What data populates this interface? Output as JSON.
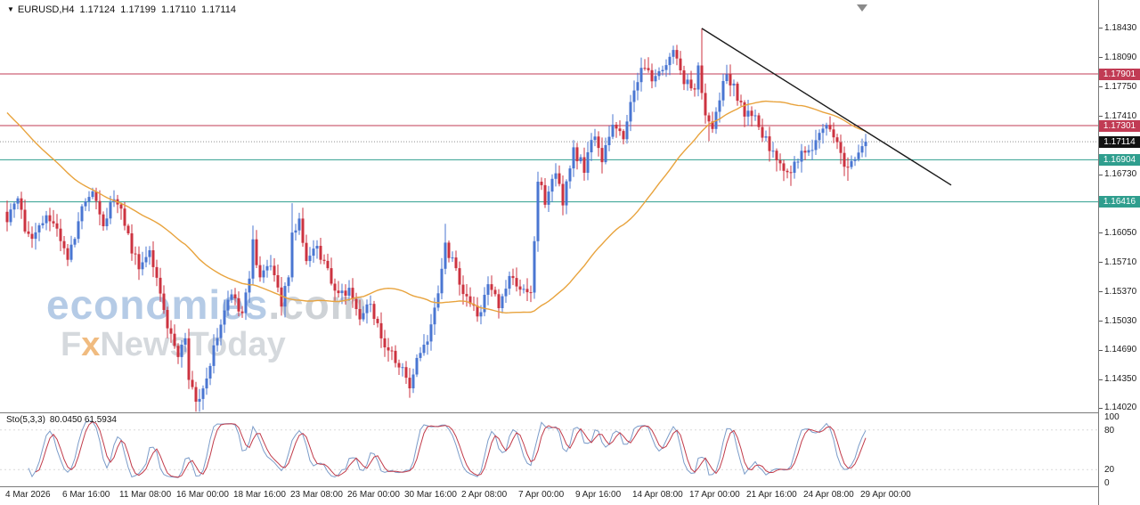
{
  "quote_header": {
    "collapse_icon": "▼",
    "symbol": "EURUSD,H4",
    "open": "1.17124",
    "high": "1.17199",
    "low": "1.17110",
    "close": "1.17114"
  },
  "watermark": {
    "brand": "economies",
    "brand_suffix": ".com",
    "tagline_pre": "F",
    "tagline_x": "x",
    "tagline_post": "NewsToday"
  },
  "colors": {
    "candle_up": "#4a76d2",
    "candle_down": "#cc3340",
    "ma_line": "#e8a33d",
    "resistance": "#c13b54",
    "support": "#2f9e8e",
    "current_price_badge": "#111111",
    "trendline": "#1a1a1a"
  },
  "price_axis": {
    "plain": [
      {
        "price": 1.1843,
        "text": "1.18430"
      },
      {
        "price": 1.1809,
        "text": "1.18090"
      },
      {
        "price": 1.1775,
        "text": "1.17750"
      },
      {
        "price": 1.1741,
        "text": "1.17410"
      },
      {
        "price": 1.1673,
        "text": "1.16730"
      },
      {
        "price": 1.1605,
        "text": "1.16050"
      },
      {
        "price": 1.1571,
        "text": "1.15710"
      },
      {
        "price": 1.1537,
        "text": "1.15370"
      },
      {
        "price": 1.1503,
        "text": "1.15030"
      },
      {
        "price": 1.1469,
        "text": "1.14690"
      },
      {
        "price": 1.1435,
        "text": "1.14350"
      },
      {
        "price": 1.1402,
        "text": "1.14020"
      }
    ],
    "badges": [
      {
        "price": 1.17901,
        "text": "1.17901",
        "color": "#c13b54"
      },
      {
        "price": 1.17301,
        "text": "1.17301",
        "color": "#c13b54"
      },
      {
        "price": 1.17114,
        "text": "1.17114",
        "color": "#111111"
      },
      {
        "price": 1.16904,
        "text": "1.16904",
        "color": "#2f9e8e"
      },
      {
        "price": 1.16416,
        "text": "1.16416",
        "color": "#2f9e8e"
      }
    ]
  },
  "chart_data": {
    "type": "candlestick",
    "symbol": "EURUSD",
    "timeframe": "H4",
    "bars": 242,
    "ylim": [
      1.1397,
      1.1876
    ],
    "hlines": [
      {
        "price": 1.17901,
        "color": "#c13b54",
        "style": "solid"
      },
      {
        "price": 1.17301,
        "color": "#c13b54",
        "style": "solid"
      },
      {
        "price": 1.17114,
        "color": "#909090",
        "style": "dotted"
      },
      {
        "price": 1.16904,
        "color": "#2f9e8e",
        "style": "solid"
      },
      {
        "price": 1.16416,
        "color": "#2f9e8e",
        "style": "solid"
      }
    ],
    "trendline": {
      "from_bar": 195,
      "from_price": 1.1843,
      "to_bar": 265,
      "to_price": 1.1661,
      "color": "#1a1a1a"
    },
    "ma": {
      "period": 50,
      "color": "#e8a33d",
      "prehistory": [
        1.186,
        1.164
      ]
    },
    "anchors": [
      [
        0,
        1.1618
      ],
      [
        2,
        1.1636
      ],
      [
        3,
        1.1645
      ],
      [
        5,
        1.1612
      ],
      [
        8,
        1.16
      ],
      [
        10,
        1.1616
      ],
      [
        12,
        1.1626
      ],
      [
        14,
        1.1605
      ],
      [
        17,
        1.1578
      ],
      [
        19,
        1.1605
      ],
      [
        21,
        1.1638
      ],
      [
        24,
        1.1652
      ],
      [
        26,
        1.1628
      ],
      [
        27,
        1.1616
      ],
      [
        30,
        1.1648
      ],
      [
        32,
        1.163
      ],
      [
        34,
        1.16
      ],
      [
        37,
        1.1562
      ],
      [
        40,
        1.1582
      ],
      [
        42,
        1.1552
      ],
      [
        44,
        1.1512
      ],
      [
        46,
        1.1488
      ],
      [
        48,
        1.1462
      ],
      [
        50,
        1.1478
      ],
      [
        51,
        1.144
      ],
      [
        53,
        1.1408
      ],
      [
        55,
        1.1428
      ],
      [
        57,
        1.1452
      ],
      [
        60,
        1.15
      ],
      [
        63,
        1.1532
      ],
      [
        66,
        1.1514
      ],
      [
        68,
        1.1556
      ],
      [
        69,
        1.1592
      ],
      [
        71,
        1.1556
      ],
      [
        74,
        1.1572
      ],
      [
        77,
        1.1522
      ],
      [
        79,
        1.156
      ],
      [
        80,
        1.1602
      ],
      [
        82,
        1.1628
      ],
      [
        84,
        1.1572
      ],
      [
        87,
        1.1592
      ],
      [
        90,
        1.1558
      ],
      [
        93,
        1.1532
      ],
      [
        96,
        1.1542
      ],
      [
        99,
        1.1506
      ],
      [
        102,
        1.1522
      ],
      [
        105,
        1.148
      ],
      [
        108,
        1.1462
      ],
      [
        111,
        1.1444
      ],
      [
        113,
        1.1426
      ],
      [
        115,
        1.1462
      ],
      [
        118,
        1.1484
      ],
      [
        121,
        1.1534
      ],
      [
        123,
        1.1592
      ],
      [
        126,
        1.1562
      ],
      [
        129,
        1.1526
      ],
      [
        132,
        1.1508
      ],
      [
        135,
        1.1542
      ],
      [
        138,
        1.1522
      ],
      [
        141,
        1.1558
      ],
      [
        144,
        1.1542
      ],
      [
        147,
        1.1532
      ],
      [
        149,
        1.1668
      ],
      [
        151,
        1.1642
      ],
      [
        154,
        1.1676
      ],
      [
        156,
        1.1644
      ],
      [
        159,
        1.17
      ],
      [
        162,
        1.1682
      ],
      [
        165,
        1.1722
      ],
      [
        167,
        1.1694
      ],
      [
        170,
        1.1736
      ],
      [
        173,
        1.1712
      ],
      [
        175,
        1.1752
      ],
      [
        178,
        1.1802
      ],
      [
        181,
        1.1786
      ],
      [
        184,
        1.18
      ],
      [
        187,
        1.1812
      ],
      [
        190,
        1.1782
      ],
      [
        193,
        1.1772
      ],
      [
        194,
        1.18
      ],
      [
        195,
        1.1768
      ],
      [
        196,
        1.1742
      ],
      [
        198,
        1.1722
      ],
      [
        200,
        1.1762
      ],
      [
        202,
        1.1788
      ],
      [
        204,
        1.1776
      ],
      [
        207,
        1.1742
      ],
      [
        210,
        1.1748
      ],
      [
        212,
        1.1722
      ],
      [
        215,
        1.17
      ],
      [
        218,
        1.168
      ],
      [
        220,
        1.1672
      ],
      [
        222,
        1.1692
      ],
      [
        225,
        1.1702
      ],
      [
        228,
        1.1722
      ],
      [
        230,
        1.173
      ],
      [
        232,
        1.1712
      ],
      [
        234,
        1.1696
      ],
      [
        236,
        1.1678
      ],
      [
        238,
        1.169
      ],
      [
        240,
        1.17
      ],
      [
        241,
        1.17114
      ]
    ],
    "spikes": [
      {
        "b": 24,
        "h": 1.1658
      },
      {
        "b": 30,
        "h": 1.1655
      },
      {
        "b": 53,
        "l": 1.1402
      },
      {
        "b": 69,
        "h": 1.1614
      },
      {
        "b": 80,
        "h": 1.164
      },
      {
        "b": 113,
        "l": 1.1414
      },
      {
        "b": 123,
        "h": 1.1616
      },
      {
        "b": 187,
        "h": 1.1822
      },
      {
        "b": 195,
        "h": 1.1843
      },
      {
        "b": 197,
        "l": 1.1712
      },
      {
        "b": 220,
        "l": 1.166
      },
      {
        "b": 236,
        "l": 1.1666
      }
    ],
    "x_labels": [
      {
        "bar": 0,
        "text": "4 Mar 2026"
      },
      {
        "bar": 16,
        "text": "6 Mar 16:00"
      },
      {
        "bar": 32,
        "text": "11 Mar 08:00"
      },
      {
        "bar": 48,
        "text": "16 Mar 00:00"
      },
      {
        "bar": 64,
        "text": "18 Mar 16:00"
      },
      {
        "bar": 80,
        "text": "23 Mar 08:00"
      },
      {
        "bar": 96,
        "text": "26 Mar 00:00"
      },
      {
        "bar": 112,
        "text": "30 Mar 16:00"
      },
      {
        "bar": 128,
        "text": "2 Apr 08:00"
      },
      {
        "bar": 144,
        "text": "7 Apr 00:00"
      },
      {
        "bar": 160,
        "text": "9 Apr 16:00"
      },
      {
        "bar": 176,
        "text": "14 Apr 08:00"
      },
      {
        "bar": 192,
        "text": "17 Apr 00:00"
      },
      {
        "bar": 208,
        "text": "21 Apr 16:00"
      },
      {
        "bar": 224,
        "text": "24 Apr 08:00"
      },
      {
        "bar": 240,
        "text": "29 Apr 00:00"
      }
    ],
    "indicator": {
      "name": "Sto(5,3,3)",
      "values_text": "80.0450 61.5934",
      "k_period": 5,
      "slowing": 3,
      "d_period": 3,
      "ylim": [
        0,
        100
      ],
      "levels": [
        {
          "v": 100,
          "text": "100"
        },
        {
          "v": 80,
          "text": "80"
        },
        {
          "v": 20,
          "text": "20"
        },
        {
          "v": 0,
          "text": "0"
        }
      ],
      "levels_dashed": [
        80,
        20
      ],
      "main_color": "#7b9cc9",
      "signal_color": "#c13b4a"
    }
  }
}
